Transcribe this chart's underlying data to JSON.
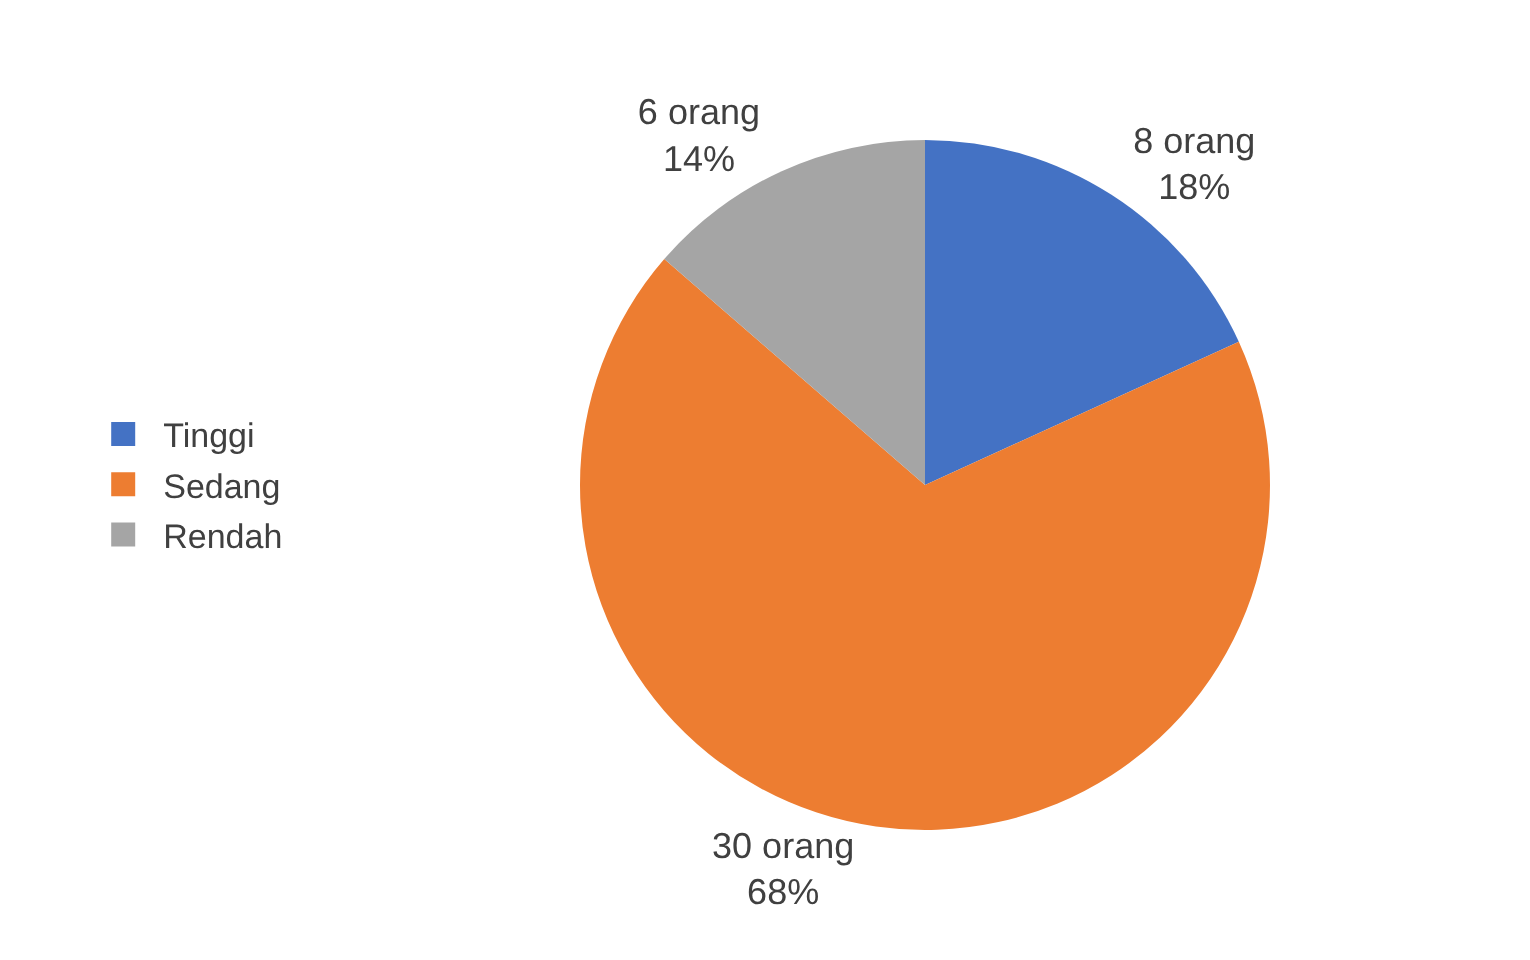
{
  "chart_data": {
    "type": "pie",
    "categories": [
      "Tinggi",
      "Sedang",
      "Rendah"
    ],
    "values": [
      8,
      30,
      6
    ],
    "colors": [
      "#4472c4",
      "#ed7d31",
      "#a5a5a5"
    ],
    "value_labels": [
      "8 orang\n18%",
      "30 orang\n68%",
      "6 orang\n14%"
    ],
    "legend": "left"
  }
}
